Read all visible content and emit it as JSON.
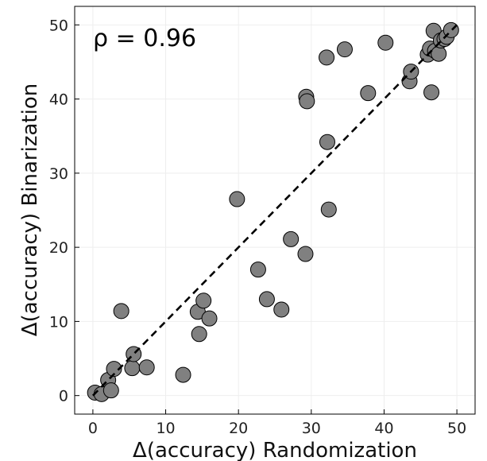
{
  "chart_data": {
    "type": "scatter",
    "xlabel": "Δ(accuracy) Randomization",
    "ylabel": "Δ(accuracy) Binarization",
    "annotation": "ρ = 0.96",
    "xlim": [
      -2.5,
      52.5
    ],
    "ylim": [
      -2.5,
      52.5
    ],
    "xticks": [
      0,
      10,
      20,
      30,
      40,
      50
    ],
    "yticks": [
      0,
      10,
      20,
      30,
      40,
      50
    ],
    "grid": true,
    "legend": "none",
    "fit_line": {
      "x": [
        0,
        50
      ],
      "y": [
        0,
        50
      ],
      "style": "dashed"
    },
    "marker_color": "#808080",
    "marker_edge": "#000000",
    "fit_color": "#000000",
    "points": [
      {
        "x": 0.3,
        "y": 0.4
      },
      {
        "x": 1.2,
        "y": 0.2
      },
      {
        "x": 2.1,
        "y": 2.1
      },
      {
        "x": 2.5,
        "y": 0.7
      },
      {
        "x": 2.9,
        "y": 3.6
      },
      {
        "x": 3.9,
        "y": 11.4
      },
      {
        "x": 5.4,
        "y": 3.7
      },
      {
        "x": 5.6,
        "y": 5.6
      },
      {
        "x": 7.4,
        "y": 3.8
      },
      {
        "x": 12.4,
        "y": 2.8
      },
      {
        "x": 14.4,
        "y": 11.3
      },
      {
        "x": 14.6,
        "y": 8.3
      },
      {
        "x": 15.2,
        "y": 12.8
      },
      {
        "x": 16.0,
        "y": 10.4
      },
      {
        "x": 19.8,
        "y": 26.5
      },
      {
        "x": 22.7,
        "y": 17.0
      },
      {
        "x": 23.9,
        "y": 13.0
      },
      {
        "x": 25.9,
        "y": 11.6
      },
      {
        "x": 27.2,
        "y": 21.1
      },
      {
        "x": 29.2,
        "y": 19.1
      },
      {
        "x": 29.3,
        "y": 40.3
      },
      {
        "x": 29.4,
        "y": 39.7
      },
      {
        "x": 32.1,
        "y": 45.6
      },
      {
        "x": 32.2,
        "y": 34.2
      },
      {
        "x": 32.4,
        "y": 25.1
      },
      {
        "x": 34.6,
        "y": 46.7
      },
      {
        "x": 37.8,
        "y": 40.8
      },
      {
        "x": 40.2,
        "y": 47.6
      },
      {
        "x": 43.5,
        "y": 42.4
      },
      {
        "x": 43.7,
        "y": 43.7
      },
      {
        "x": 46.0,
        "y": 46.0
      },
      {
        "x": 46.3,
        "y": 46.8
      },
      {
        "x": 46.5,
        "y": 40.9
      },
      {
        "x": 46.8,
        "y": 49.2
      },
      {
        "x": 47.0,
        "y": 46.5
      },
      {
        "x": 47.5,
        "y": 46.1
      },
      {
        "x": 47.8,
        "y": 47.9
      },
      {
        "x": 48.3,
        "y": 48.1
      },
      {
        "x": 48.6,
        "y": 48.4
      },
      {
        "x": 49.2,
        "y": 49.3
      }
    ]
  }
}
